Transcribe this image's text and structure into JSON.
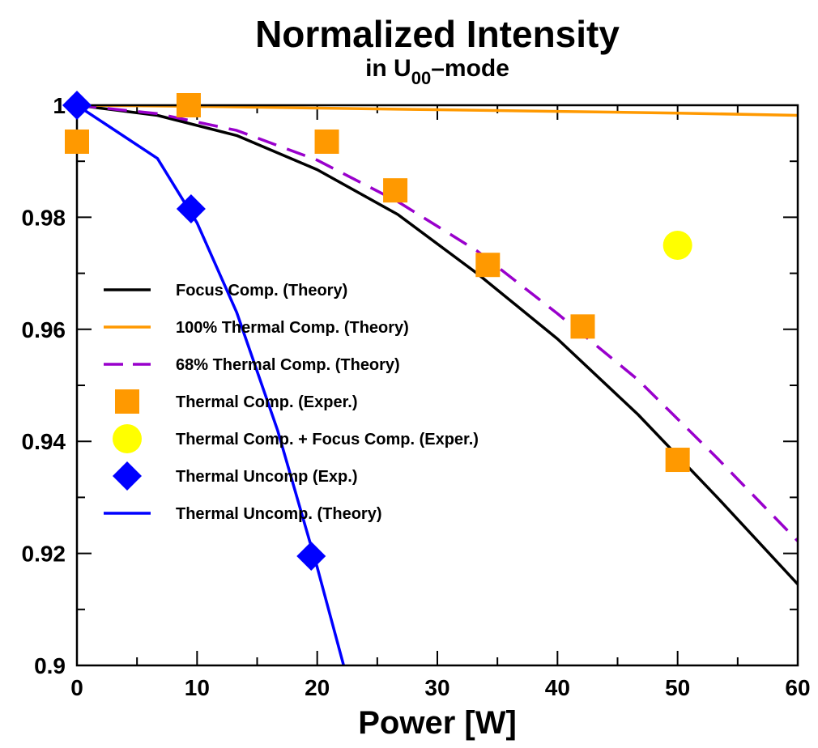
{
  "chart_data": {
    "type": "line",
    "title": "Normalized Intensity",
    "subtitle": {
      "prefix": "in U",
      "subscript": "00",
      "suffix": "–mode"
    },
    "xlabel": "Power [W]",
    "ylabel": "",
    "xlim": [
      0,
      60
    ],
    "ylim": [
      0.9,
      1.0
    ],
    "x_ticks": [
      0,
      10,
      20,
      30,
      40,
      50,
      60
    ],
    "x_tick_labels": [
      "0",
      "10",
      "20",
      "30",
      "40",
      "50",
      "60"
    ],
    "y_ticks": [
      0.9,
      0.92,
      0.94,
      0.96,
      0.98,
      1.0
    ],
    "y_tick_labels": [
      "0.9",
      "0.92",
      "0.94",
      "0.96",
      "0.98",
      "1"
    ],
    "grid": false,
    "legend_position": "center-left",
    "series": [
      {
        "name": "Focus Comp.  (Theory)",
        "kind": "line",
        "style": "solid",
        "color": "#000000",
        "x": [
          0,
          6.7,
          13.3,
          20,
          26.7,
          33.3,
          40,
          46.7,
          53.3,
          60
        ],
        "y": [
          1.0,
          0.9982,
          0.9946,
          0.9885,
          0.9805,
          0.97,
          0.9583,
          0.9448,
          0.93,
          0.9145
        ]
      },
      {
        "name": "100% Thermal Comp.  (Theory)",
        "kind": "line",
        "style": "solid",
        "color": "#ff9900",
        "x": [
          0,
          10,
          20,
          30,
          40,
          50,
          60
        ],
        "y": [
          1.0,
          0.9998,
          0.9995,
          0.9992,
          0.9989,
          0.9986,
          0.9982
        ]
      },
      {
        "name": "68% Thermal Comp. (Theory)",
        "kind": "line",
        "style": "dashed",
        "color": "#9900cc",
        "x": [
          0,
          6.7,
          13.3,
          20,
          26.7,
          33.3,
          40,
          46.7,
          53.3,
          60
        ],
        "y": [
          1.0,
          0.9985,
          0.9955,
          0.9902,
          0.9828,
          0.974,
          0.9628,
          0.951,
          0.937,
          0.9222
        ]
      },
      {
        "name": "Thermal Comp.  (Exper.)",
        "kind": "marker",
        "marker": "square",
        "color": "#ff9900",
        "x": [
          0,
          9.3,
          20.8,
          26.5,
          34.2,
          42.1,
          50
        ],
        "y": [
          0.9935,
          1.0,
          0.9935,
          0.9848,
          0.9715,
          0.9605,
          0.9367
        ]
      },
      {
        "name": "Thermal Comp. + Focus Comp. (Exper.)",
        "kind": "marker",
        "marker": "circle",
        "color": "#ffff00",
        "x": [
          50
        ],
        "y": [
          0.975
        ]
      },
      {
        "name": "Thermal Uncomp (Exp.)",
        "kind": "marker",
        "marker": "diamond",
        "color": "#0000ff",
        "x": [
          0,
          9.5,
          19.5
        ],
        "y": [
          1.0,
          0.9815,
          0.9195
        ]
      },
      {
        "name": "Thermal Uncomp. (Theory)",
        "kind": "line",
        "style": "solid",
        "color": "#0000ff",
        "x": [
          0,
          6.7,
          10,
          13.3,
          16.7,
          20,
          22.2
        ],
        "y": [
          1.0,
          0.9905,
          0.979,
          0.963,
          0.942,
          0.9175,
          0.9
        ]
      }
    ]
  }
}
